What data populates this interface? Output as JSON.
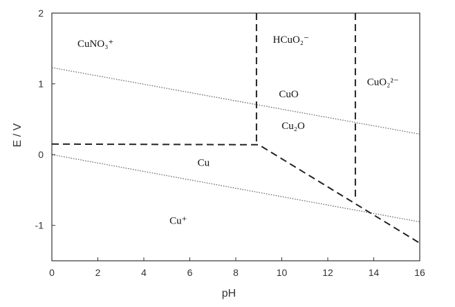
{
  "chart_data": {
    "type": "line",
    "xlabel": "pH",
    "ylabel": "E / V",
    "xlim": [
      0,
      16
    ],
    "ylim": [
      -1.5,
      2
    ],
    "xticks": [
      "0",
      "2",
      "4",
      "6",
      "8",
      "10",
      "12",
      "14",
      "16"
    ],
    "yticks": [
      "2",
      "1",
      "0",
      "-1"
    ],
    "grid": false,
    "legend": "none",
    "series": [
      {
        "style": "dotted",
        "x": [
          0,
          16
        ],
        "y": [
          1.23,
          0.29
        ]
      },
      {
        "style": "dotted",
        "x": [
          0,
          16
        ],
        "y": [
          0.0,
          -0.95
        ]
      },
      {
        "style": "dashed",
        "x": [
          0,
          9.0,
          16
        ],
        "y": [
          0.15,
          0.14,
          -1.25
        ]
      },
      {
        "style": "dashed",
        "x": [
          8.9,
          8.9
        ],
        "y": [
          2,
          0.14
        ]
      },
      {
        "style": "dashed",
        "x": [
          13.2,
          13.2
        ],
        "y": [
          2,
          -0.62
        ]
      }
    ],
    "region_labels": [
      {
        "text": "CuNO₃⁺",
        "x": 1.9,
        "y": 1.52
      },
      {
        "text": "HCuO₂⁻",
        "x": 10.4,
        "y": 1.58
      },
      {
        "text": "CuO₂²⁻",
        "x": 14.4,
        "y": 0.98
      },
      {
        "text": "CuO",
        "x": 10.3,
        "y": 0.81
      },
      {
        "text": "Cu₂O",
        "x": 10.5,
        "y": 0.36
      },
      {
        "text": "Cu",
        "x": 6.6,
        "y": -0.16
      },
      {
        "text": "Cu⁺",
        "x": 5.5,
        "y": -0.98
      }
    ]
  }
}
